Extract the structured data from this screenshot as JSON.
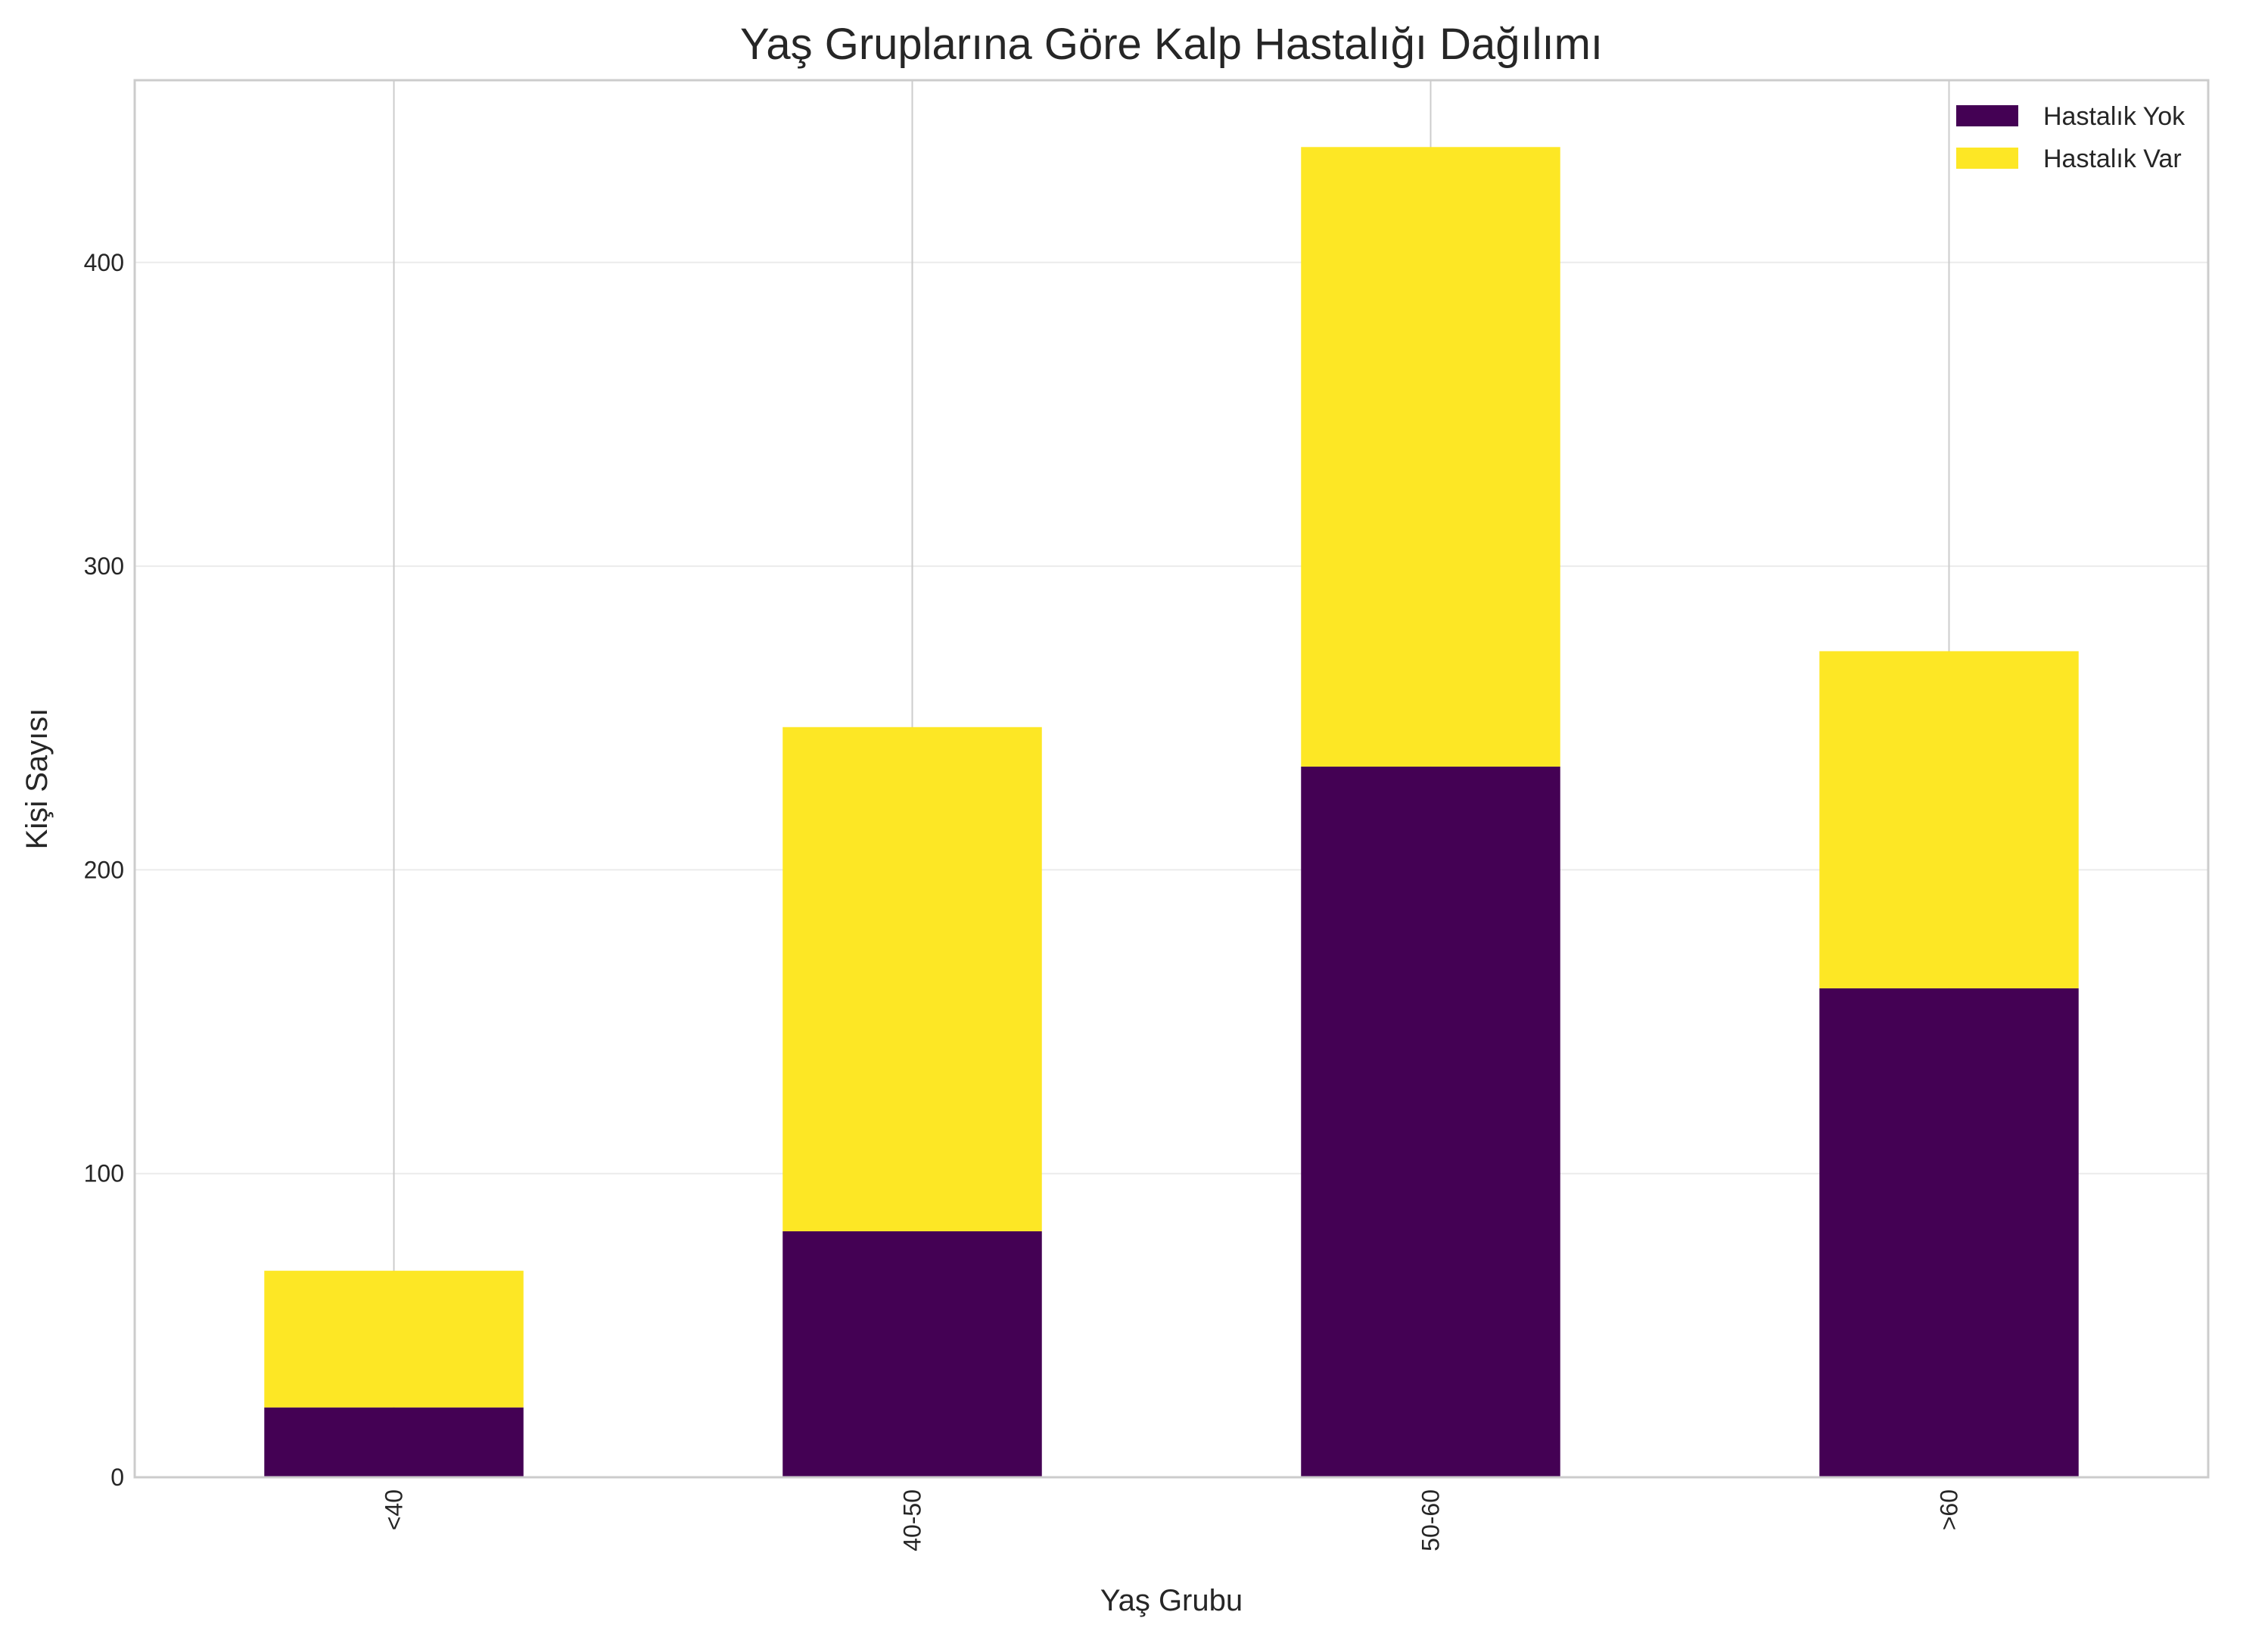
{
  "chart_data": {
    "type": "bar",
    "stacked": true,
    "title": "Yaş Gruplarına Göre Kalp Hastalığı Dağılımı",
    "xlabel": "Yaş Grubu",
    "ylabel": "Kişi Sayısı",
    "categories": [
      "<40",
      "40-50",
      "50-60",
      ">60"
    ],
    "series": [
      {
        "name": "Hastalık Yok",
        "color": "#440154",
        "values": [
          23,
          81,
          234,
          161
        ]
      },
      {
        "name": "Hastalık Var",
        "color": "#fde725",
        "values": [
          45,
          166,
          204,
          111
        ]
      }
    ],
    "ylim": [
      0,
      460
    ],
    "yticks": [
      0,
      100,
      200,
      300,
      400
    ],
    "grid": true,
    "legend_position": "top-right",
    "xtick_rotation": 90
  }
}
